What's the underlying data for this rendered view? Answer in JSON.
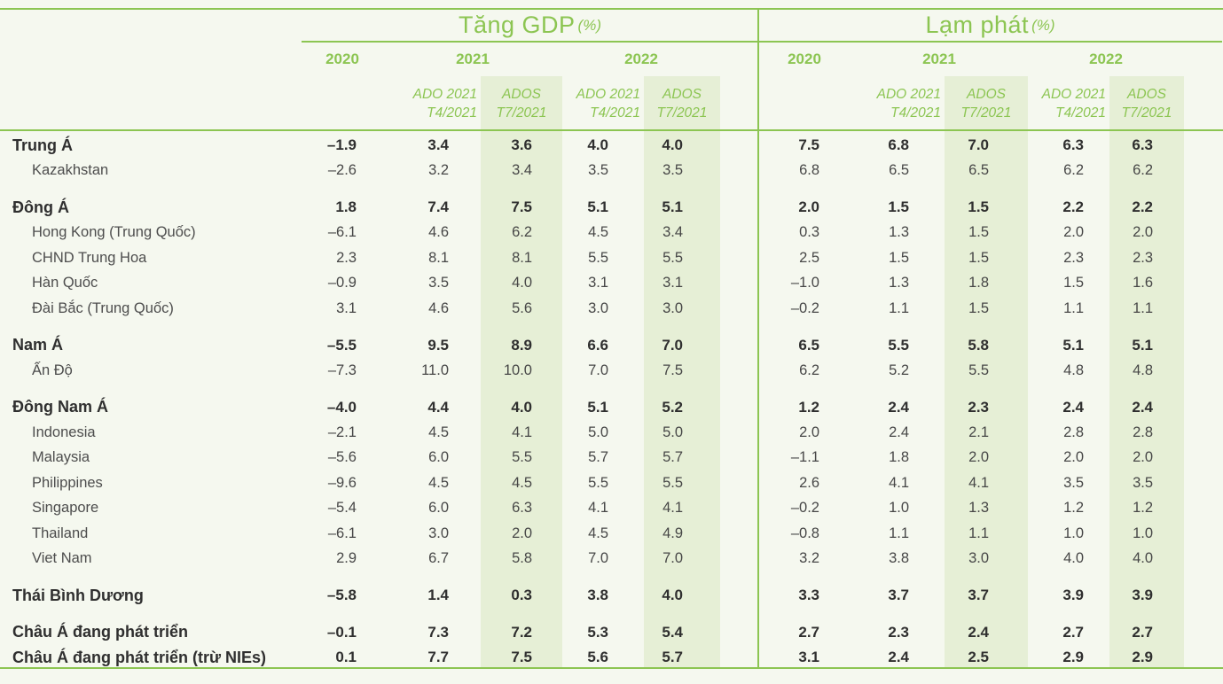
{
  "colors": {
    "accent_green": "#8CC552",
    "band_green": "#E6EFD6",
    "background": "#F5F8EF"
  },
  "header": {
    "gdp_title": "Tăng GDP",
    "gdp_unit": "(%)",
    "inflation_title": "Lạm phát",
    "inflation_unit": "(%)",
    "years": [
      "2020",
      "2021",
      "2022"
    ],
    "sub_ado_line1": "ADO 2021",
    "sub_ado_line2": "T4/2021",
    "sub_ados_line1": "ADOS",
    "sub_ados_line2": "T7/2021"
  },
  "rows": [
    {
      "label": "Trung Á",
      "level": "region",
      "group_start": true,
      "gdp": [
        "–1.9",
        "3.4",
        "3.6",
        "4.0",
        "4.0"
      ],
      "inflation": [
        "7.5",
        "6.8",
        "7.0",
        "6.3",
        "6.3"
      ]
    },
    {
      "label": "Kazakhstan",
      "level": "country",
      "group_start": false,
      "gdp": [
        "–2.6",
        "3.2",
        "3.4",
        "3.5",
        "3.5"
      ],
      "inflation": [
        "6.8",
        "6.5",
        "6.5",
        "6.2",
        "6.2"
      ]
    },
    {
      "label": "Đông Á",
      "level": "region",
      "group_start": true,
      "gdp": [
        "1.8",
        "7.4",
        "7.5",
        "5.1",
        "5.1"
      ],
      "inflation": [
        "2.0",
        "1.5",
        "1.5",
        "2.2",
        "2.2"
      ]
    },
    {
      "label": "Hong Kong (Trung Quốc)",
      "level": "country",
      "group_start": false,
      "gdp": [
        "–6.1",
        "4.6",
        "6.2",
        "4.5",
        "3.4"
      ],
      "inflation": [
        "0.3",
        "1.3",
        "1.5",
        "2.0",
        "2.0"
      ]
    },
    {
      "label": "CHND Trung Hoa",
      "level": "country",
      "group_start": false,
      "gdp": [
        "2.3",
        "8.1",
        "8.1",
        "5.5",
        "5.5"
      ],
      "inflation": [
        "2.5",
        "1.5",
        "1.5",
        "2.3",
        "2.3"
      ]
    },
    {
      "label": "Hàn Quốc",
      "level": "country",
      "group_start": false,
      "gdp": [
        "–0.9",
        "3.5",
        "4.0",
        "3.1",
        "3.1"
      ],
      "inflation": [
        "–1.0",
        "1.3",
        "1.8",
        "1.5",
        "1.6"
      ]
    },
    {
      "label": "Đài Bắc (Trung Quốc)",
      "level": "country",
      "group_start": false,
      "gdp": [
        "3.1",
        "4.6",
        "5.6",
        "3.0",
        "3.0"
      ],
      "inflation": [
        "–0.2",
        "1.1",
        "1.5",
        "1.1",
        "1.1"
      ]
    },
    {
      "label": "Nam Á",
      "level": "region",
      "group_start": true,
      "gdp": [
        "–5.5",
        "9.5",
        "8.9",
        "6.6",
        "7.0"
      ],
      "inflation": [
        "6.5",
        "5.5",
        "5.8",
        "5.1",
        "5.1"
      ]
    },
    {
      "label": "Ấn Độ",
      "level": "country",
      "group_start": false,
      "gdp": [
        "–7.3",
        "11.0",
        "10.0",
        "7.0",
        "7.5"
      ],
      "inflation": [
        "6.2",
        "5.2",
        "5.5",
        "4.8",
        "4.8"
      ]
    },
    {
      "label": "Đông Nam Á",
      "level": "region",
      "group_start": true,
      "gdp": [
        "–4.0",
        "4.4",
        "4.0",
        "5.1",
        "5.2"
      ],
      "inflation": [
        "1.2",
        "2.4",
        "2.3",
        "2.4",
        "2.4"
      ]
    },
    {
      "label": "Indonesia",
      "level": "country",
      "group_start": false,
      "gdp": [
        "–2.1",
        "4.5",
        "4.1",
        "5.0",
        "5.0"
      ],
      "inflation": [
        "2.0",
        "2.4",
        "2.1",
        "2.8",
        "2.8"
      ]
    },
    {
      "label": "Malaysia",
      "level": "country",
      "group_start": false,
      "gdp": [
        "–5.6",
        "6.0",
        "5.5",
        "5.7",
        "5.7"
      ],
      "inflation": [
        "–1.1",
        "1.8",
        "2.0",
        "2.0",
        "2.0"
      ]
    },
    {
      "label": "Philippines",
      "level": "country",
      "group_start": false,
      "gdp": [
        "–9.6",
        "4.5",
        "4.5",
        "5.5",
        "5.5"
      ],
      "inflation": [
        "2.6",
        "4.1",
        "4.1",
        "3.5",
        "3.5"
      ]
    },
    {
      "label": "Singapore",
      "level": "country",
      "group_start": false,
      "gdp": [
        "–5.4",
        "6.0",
        "6.3",
        "4.1",
        "4.1"
      ],
      "inflation": [
        "–0.2",
        "1.0",
        "1.3",
        "1.2",
        "1.2"
      ]
    },
    {
      "label": "Thailand",
      "level": "country",
      "group_start": false,
      "gdp": [
        "–6.1",
        "3.0",
        "2.0",
        "4.5",
        "4.9"
      ],
      "inflation": [
        "–0.8",
        "1.1",
        "1.1",
        "1.0",
        "1.0"
      ]
    },
    {
      "label": "Viet Nam",
      "level": "country",
      "group_start": false,
      "gdp": [
        "2.9",
        "6.7",
        "5.8",
        "7.0",
        "7.0"
      ],
      "inflation": [
        "3.2",
        "3.8",
        "3.0",
        "4.0",
        "4.0"
      ]
    },
    {
      "label": "Thái Bình Dương",
      "level": "region",
      "group_start": true,
      "gdp": [
        "–5.8",
        "1.4",
        "0.3",
        "3.8",
        "4.0"
      ],
      "inflation": [
        "3.3",
        "3.7",
        "3.7",
        "3.9",
        "3.9"
      ]
    },
    {
      "label": "Châu Á đang phát triển",
      "level": "region",
      "group_start": true,
      "gdp": [
        "–0.1",
        "7.3",
        "7.2",
        "5.3",
        "5.4"
      ],
      "inflation": [
        "2.7",
        "2.3",
        "2.4",
        "2.7",
        "2.7"
      ]
    },
    {
      "label": "Châu Á đang phát triển (trừ NIEs)",
      "level": "region",
      "group_start": false,
      "gdp": [
        "0.1",
        "7.7",
        "7.5",
        "5.6",
        "5.7"
      ],
      "inflation": [
        "3.1",
        "2.4",
        "2.5",
        "2.9",
        "2.9"
      ]
    }
  ]
}
